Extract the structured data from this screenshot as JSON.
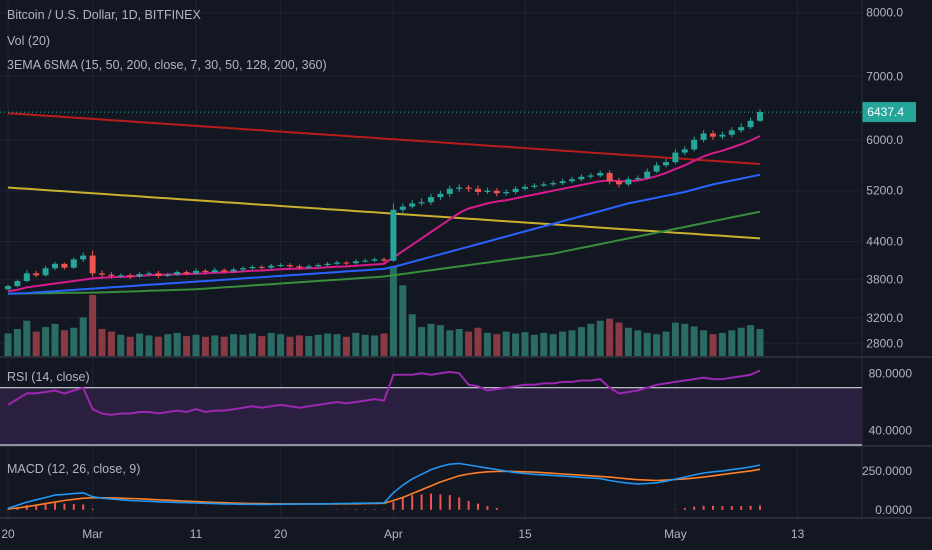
{
  "colors": {
    "bg": "#131722",
    "grid": "#1f2433",
    "text": "#b2b5be",
    "up": "#26a69a",
    "down": "#ef5350",
    "vol_up": "#2a6b64",
    "vol_down": "#8a3a45",
    "ema_short": "#d81b8c",
    "sma_mid": "#2962ff",
    "sma_long": "#388e3c",
    "sma_200": "#c9b12f",
    "sma_360": "#b71c1c",
    "rsi": "#9c27b0",
    "rsi_band": "#2a1f3f",
    "macd": "#2196f3",
    "signal": "#ff7f27",
    "hist": "#ef5350",
    "price_tag": "#26a69a"
  },
  "legend": {
    "main": "Bitcoin / U.S. Dollar, 1D, BITFINEX",
    "vol": "Vol (20)",
    "ema": "3EMA 6SMA (15, 50, 200, close, 7, 30, 50, 128, 200, 360)",
    "rsi": "RSI (14, close)",
    "macd": "MACD (12, 26, close, 9)"
  },
  "current_price": "6437.4",
  "chart_data": [
    {
      "type": "candlestick",
      "title": "Bitcoin / U.S. Dollar, 1D, BITFINEX",
      "ylim": [
        2600,
        8200
      ],
      "y_ticks": [
        "2800.0",
        "3200.0",
        "3800.0",
        "4400.0",
        "5200.0",
        "6000.0",
        "7000.0",
        "8000.0"
      ],
      "y_tick_values": [
        2800,
        3200,
        3800,
        4400,
        5200,
        6000,
        7000,
        8000
      ],
      "x_ticks": [
        "20",
        "Mar",
        "11",
        "20",
        "Apr",
        "15",
        "May",
        "13"
      ],
      "x_tick_days": [
        0,
        9,
        20,
        29,
        41,
        55,
        71,
        84
      ],
      "candles": [
        [
          3650,
          3700,
          3630,
          3720
        ],
        [
          3700,
          3780,
          3680,
          3800
        ],
        [
          3780,
          3900,
          3760,
          3950
        ],
        [
          3900,
          3870,
          3840,
          3940
        ],
        [
          3870,
          3980,
          3850,
          4020
        ],
        [
          3980,
          4050,
          3950,
          4080
        ],
        [
          4050,
          3990,
          3960,
          4070
        ],
        [
          3990,
          4120,
          3970,
          4150
        ],
        [
          4120,
          4180,
          4080,
          4230
        ],
        [
          4180,
          3900,
          3850,
          4260
        ],
        [
          3900,
          3880,
          3830,
          3950
        ],
        [
          3880,
          3860,
          3820,
          3920
        ],
        [
          3860,
          3870,
          3830,
          3900
        ],
        [
          3870,
          3850,
          3810,
          3900
        ],
        [
          3850,
          3890,
          3830,
          3920
        ],
        [
          3890,
          3900,
          3860,
          3930
        ],
        [
          3900,
          3860,
          3830,
          3940
        ],
        [
          3860,
          3880,
          3840,
          3910
        ],
        [
          3880,
          3920,
          3860,
          3950
        ],
        [
          3920,
          3900,
          3870,
          3950
        ],
        [
          3900,
          3940,
          3880,
          3980
        ],
        [
          3940,
          3920,
          3890,
          3970
        ],
        [
          3920,
          3950,
          3900,
          3990
        ],
        [
          3950,
          3930,
          3900,
          3980
        ],
        [
          3930,
          3960,
          3910,
          3990
        ],
        [
          3960,
          3980,
          3930,
          4010
        ],
        [
          3980,
          4000,
          3960,
          4030
        ],
        [
          4000,
          3990,
          3960,
          4030
        ],
        [
          3990,
          4020,
          3970,
          4050
        ],
        [
          4020,
          4030,
          4000,
          4060
        ],
        [
          4030,
          4010,
          3980,
          4060
        ],
        [
          4010,
          3990,
          3960,
          4040
        ],
        [
          3990,
          4010,
          3970,
          4040
        ],
        [
          4010,
          4030,
          3990,
          4060
        ],
        [
          4030,
          4050,
          4010,
          4080
        ],
        [
          4050,
          4070,
          4030,
          4100
        ],
        [
          4070,
          4060,
          4030,
          4090
        ],
        [
          4060,
          4090,
          4040,
          4120
        ],
        [
          4090,
          4100,
          4070,
          4130
        ],
        [
          4100,
          4120,
          4080,
          4150
        ],
        [
          4120,
          4100,
          4070,
          4150
        ],
        [
          4100,
          4900,
          4080,
          5000
        ],
        [
          4900,
          4950,
          4850,
          5000
        ],
        [
          4950,
          5000,
          4920,
          5050
        ],
        [
          5000,
          5020,
          4960,
          5080
        ],
        [
          5020,
          5100,
          4980,
          5150
        ],
        [
          5100,
          5150,
          5050,
          5200
        ],
        [
          5150,
          5230,
          5100,
          5280
        ],
        [
          5230,
          5250,
          5180,
          5300
        ],
        [
          5250,
          5230,
          5180,
          5290
        ],
        [
          5230,
          5180,
          5130,
          5280
        ],
        [
          5180,
          5200,
          5150,
          5250
        ],
        [
          5200,
          5160,
          5110,
          5240
        ],
        [
          5160,
          5180,
          5120,
          5220
        ],
        [
          5180,
          5230,
          5150,
          5270
        ],
        [
          5230,
          5260,
          5200,
          5300
        ],
        [
          5260,
          5280,
          5230,
          5320
        ],
        [
          5280,
          5300,
          5260,
          5340
        ],
        [
          5300,
          5320,
          5270,
          5360
        ],
        [
          5320,
          5350,
          5290,
          5390
        ],
        [
          5350,
          5380,
          5320,
          5420
        ],
        [
          5380,
          5420,
          5350,
          5460
        ],
        [
          5420,
          5440,
          5390,
          5480
        ],
        [
          5440,
          5480,
          5410,
          5520
        ],
        [
          5480,
          5350,
          5300,
          5520
        ],
        [
          5350,
          5300,
          5250,
          5400
        ],
        [
          5300,
          5380,
          5270,
          5420
        ],
        [
          5380,
          5400,
          5350,
          5440
        ],
        [
          5400,
          5500,
          5380,
          5550
        ],
        [
          5500,
          5600,
          5480,
          5650
        ],
        [
          5600,
          5650,
          5570,
          5700
        ],
        [
          5650,
          5800,
          5620,
          5850
        ],
        [
          5800,
          5850,
          5760,
          5900
        ],
        [
          5850,
          6000,
          5820,
          6050
        ],
        [
          6000,
          6100,
          5960,
          6150
        ],
        [
          6100,
          6050,
          6000,
          6150
        ],
        [
          6050,
          6080,
          6010,
          6130
        ],
        [
          6080,
          6150,
          6040,
          6200
        ],
        [
          6150,
          6200,
          6110,
          6260
        ],
        [
          6200,
          6300,
          6170,
          6350
        ],
        [
          6300,
          6437,
          6280,
          6480
        ]
      ],
      "ema_15": [
        3620,
        3640,
        3680,
        3700,
        3720,
        3740,
        3760,
        3780,
        3800,
        3820,
        3830,
        3840,
        3845,
        3850,
        3860,
        3870,
        3875,
        3880,
        3885,
        3890,
        3895,
        3900,
        3910,
        3915,
        3920,
        3930,
        3940,
        3945,
        3955,
        3965,
        3970,
        3975,
        3980,
        3985,
        3995,
        4005,
        4010,
        4020,
        4030,
        4040,
        4050,
        4150,
        4250,
        4350,
        4450,
        4550,
        4650,
        4750,
        4850,
        4920,
        4960,
        5000,
        5030,
        5050,
        5080,
        5110,
        5140,
        5170,
        5200,
        5230,
        5260,
        5290,
        5320,
        5350,
        5360,
        5350,
        5350,
        5360,
        5390,
        5430,
        5480,
        5540,
        5600,
        5670,
        5740,
        5790,
        5830,
        5880,
        5930,
        5990,
        6060
      ],
      "sma_30": [
        3580,
        3585,
        3590,
        3600,
        3610,
        3620,
        3630,
        3640,
        3650,
        3660,
        3670,
        3680,
        3690,
        3700,
        3710,
        3720,
        3730,
        3740,
        3750,
        3760,
        3770,
        3780,
        3790,
        3800,
        3810,
        3820,
        3830,
        3840,
        3850,
        3860,
        3870,
        3880,
        3890,
        3900,
        3910,
        3920,
        3930,
        3940,
        3950,
        3960,
        3970,
        4000,
        4040,
        4080,
        4120,
        4160,
        4200,
        4240,
        4280,
        4320,
        4360,
        4400,
        4440,
        4480,
        4520,
        4560,
        4600,
        4640,
        4680,
        4720,
        4760,
        4800,
        4840,
        4880,
        4920,
        4960,
        5000,
        5030,
        5060,
        5090,
        5120,
        5150,
        5180,
        5220,
        5260,
        5300,
        5330,
        5360,
        5390,
        5420,
        5450
      ],
      "sma_50": [
        3580,
        3582,
        3584,
        3586,
        3588,
        3590,
        3592,
        3594,
        3596,
        3598,
        3600,
        3605,
        3610,
        3615,
        3620,
        3625,
        3630,
        3635,
        3640,
        3645,
        3650,
        3660,
        3670,
        3680,
        3690,
        3700,
        3710,
        3720,
        3730,
        3740,
        3750,
        3760,
        3770,
        3780,
        3790,
        3800,
        3810,
        3820,
        3830,
        3840,
        3850,
        3870,
        3890,
        3910,
        3930,
        3950,
        3970,
        3990,
        4010,
        4030,
        4050,
        4070,
        4090,
        4110,
        4130,
        4150,
        4170,
        4190,
        4210,
        4240,
        4270,
        4300,
        4330,
        4360,
        4390,
        4420,
        4450,
        4480,
        4510,
        4540,
        4570,
        4600,
        4630,
        4660,
        4690,
        4720,
        4750,
        4780,
        4810,
        4840,
        4870
      ],
      "sma_200": [
        5250,
        5240,
        5230,
        5220,
        5210,
        5200,
        5190,
        5180,
        5170,
        5160,
        5150,
        5140,
        5130,
        5120,
        5110,
        5100,
        5090,
        5080,
        5070,
        5060,
        5050,
        5040,
        5030,
        5020,
        5010,
        5000,
        4990,
        4980,
        4970,
        4960,
        4950,
        4940,
        4930,
        4920,
        4910,
        4900,
        4890,
        4880,
        4870,
        4860,
        4850,
        4840,
        4830,
        4820,
        4810,
        4800,
        4790,
        4780,
        4770,
        4760,
        4750,
        4740,
        4730,
        4720,
        4710,
        4700,
        4690,
        4680,
        4670,
        4660,
        4650,
        4640,
        4630,
        4620,
        4610,
        4600,
        4590,
        4580,
        4570,
        4560,
        4550,
        4540,
        4530,
        4520,
        4510,
        4500,
        4490,
        4480,
        4470,
        4460,
        4450
      ],
      "sma_360": [
        6420,
        6410,
        6400,
        6390,
        6380,
        6370,
        6360,
        6350,
        6340,
        6330,
        6320,
        6310,
        6300,
        6290,
        6280,
        6270,
        6260,
        6250,
        6240,
        6230,
        6220,
        6210,
        6200,
        6190,
        6180,
        6170,
        6160,
        6150,
        6140,
        6130,
        6120,
        6110,
        6100,
        6090,
        6080,
        6070,
        6060,
        6050,
        6040,
        6030,
        6020,
        6010,
        6000,
        5990,
        5980,
        5970,
        5960,
        5950,
        5940,
        5930,
        5920,
        5910,
        5900,
        5890,
        5880,
        5870,
        5860,
        5850,
        5840,
        5830,
        5820,
        5810,
        5800,
        5790,
        5780,
        5770,
        5760,
        5750,
        5740,
        5730,
        5720,
        5710,
        5700,
        5690,
        5680,
        5670,
        5660,
        5650,
        5640,
        5630,
        5620
      ],
      "volume": [
        35,
        42,
        55,
        38,
        45,
        50,
        40,
        44,
        60,
        95,
        42,
        38,
        33,
        30,
        35,
        32,
        30,
        34,
        36,
        31,
        33,
        30,
        32,
        30,
        34,
        33,
        35,
        31,
        36,
        34,
        30,
        32,
        31,
        33,
        35,
        34,
        30,
        36,
        33,
        32,
        35,
        140,
        110,
        65,
        45,
        50,
        48,
        40,
        42,
        38,
        44,
        36,
        34,
        38,
        35,
        37,
        33,
        36,
        34,
        38,
        40,
        45,
        50,
        55,
        58,
        52,
        44,
        40,
        36,
        34,
        38,
        52,
        50,
        46,
        40,
        34,
        36,
        40,
        44,
        48,
        42
      ]
    },
    {
      "type": "line",
      "title": "RSI (14, close)",
      "ylim": [
        30,
        90
      ],
      "y_ticks": [
        "40.0000",
        "80.0000"
      ],
      "y_tick_values": [
        40,
        80
      ],
      "band": [
        30,
        70
      ],
      "values": [
        58,
        62,
        66,
        66,
        67,
        68,
        66,
        68,
        70,
        55,
        52,
        51,
        52,
        52,
        53,
        53,
        52,
        53,
        54,
        53,
        55,
        53,
        54,
        54,
        55,
        56,
        57,
        56,
        57,
        58,
        57,
        56,
        57,
        58,
        59,
        60,
        59,
        60,
        61,
        62,
        61,
        79,
        79,
        79,
        80,
        79,
        80,
        81,
        80,
        72,
        71,
        68,
        69,
        70,
        71,
        72,
        72,
        73,
        73,
        74,
        74,
        75,
        75,
        76,
        70,
        66,
        67,
        68,
        70,
        72,
        73,
        74,
        75,
        76,
        77,
        76,
        76,
        77,
        78,
        79,
        82
      ]
    },
    {
      "type": "line",
      "title": "MACD (12, 26, close, 9)",
      "ylim": [
        -40,
        400
      ],
      "y_ticks": [
        "0.0000",
        "250.0000"
      ],
      "y_tick_values": [
        0,
        250
      ],
      "macd": [
        10,
        30,
        50,
        65,
        80,
        95,
        100,
        105,
        110,
        85,
        75,
        70,
        65,
        60,
        57,
        55,
        52,
        50,
        48,
        46,
        44,
        42,
        40,
        38,
        37,
        36,
        36,
        35,
        36,
        36,
        37,
        37,
        38,
        38,
        39,
        40,
        41,
        42,
        43,
        44,
        45,
        110,
        160,
        200,
        230,
        260,
        280,
        295,
        300,
        290,
        280,
        270,
        260,
        250,
        240,
        235,
        230,
        226,
        222,
        218,
        214,
        210,
        206,
        202,
        190,
        180,
        172,
        168,
        170,
        175,
        185,
        198,
        212,
        226,
        238,
        246,
        252,
        260,
        268,
        278,
        290
      ],
      "signal": [
        5,
        12,
        20,
        30,
        40,
        50,
        60,
        68,
        75,
        78,
        78,
        77,
        75,
        73,
        71,
        68,
        65,
        62,
        59,
        56,
        53,
        50,
        48,
        46,
        44,
        42,
        41,
        40,
        39,
        38,
        38,
        38,
        38,
        38,
        38,
        38,
        39,
        39,
        40,
        41,
        42,
        60,
        80,
        105,
        130,
        155,
        180,
        200,
        220,
        232,
        240,
        246,
        248,
        249,
        248,
        246,
        244,
        240,
        236,
        232,
        228,
        224,
        220,
        216,
        212,
        206,
        200,
        195,
        192,
        190,
        192,
        196,
        200,
        205,
        212,
        220,
        228,
        236,
        244,
        252,
        262
      ],
      "histogram": [
        5,
        18,
        30,
        35,
        40,
        45,
        40,
        37,
        35,
        7,
        0,
        0,
        0,
        0,
        0,
        0,
        0,
        0,
        0,
        0,
        0,
        0,
        0,
        0,
        0,
        0,
        0,
        0,
        0,
        0,
        0,
        0,
        0,
        0,
        1,
        2,
        2,
        3,
        3,
        3,
        3,
        50,
        80,
        95,
        100,
        105,
        100,
        95,
        80,
        58,
        40,
        24,
        12,
        1,
        0,
        0,
        0,
        0,
        0,
        0,
        0,
        0,
        0,
        0,
        0,
        0,
        0,
        0,
        0,
        0,
        0,
        2,
        12,
        21,
        26,
        26,
        24,
        24,
        24,
        26,
        28
      ]
    }
  ]
}
